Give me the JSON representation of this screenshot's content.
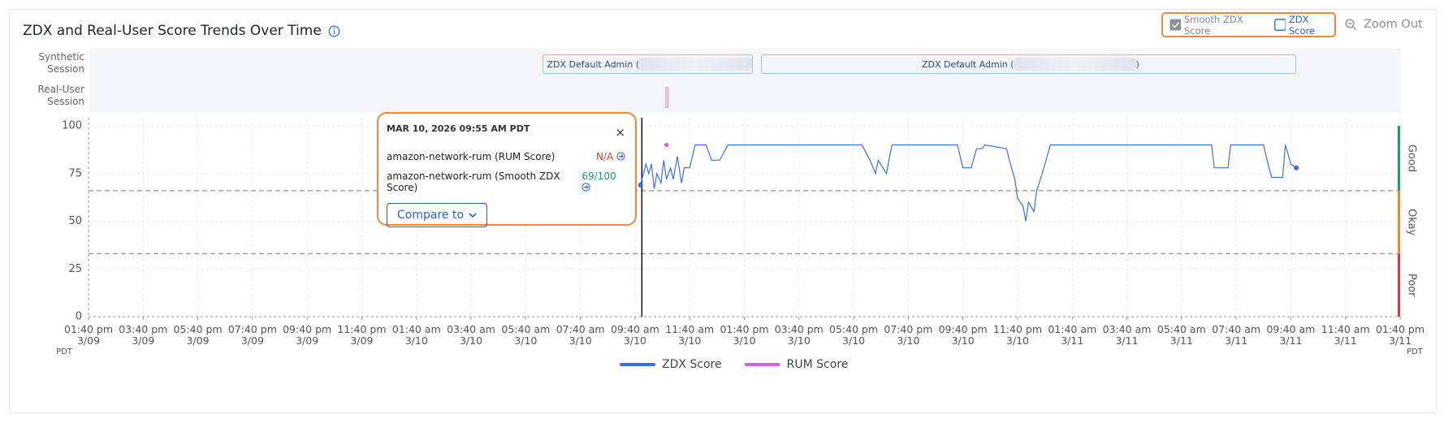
{
  "title": "ZDX and Real-User Score Trends Over Time",
  "controls": {
    "smooth": "Smooth ZDX Score",
    "zdx": "ZDX Score",
    "zoom": "Zoom Out"
  },
  "sessions": {
    "synthetic_label": "Synthetic Session",
    "real_user_label": "Real-User Session",
    "synthetic": [
      {
        "label": "ZDX Default Admin (",
        "start": 16.6,
        "end": 24.3
      },
      {
        "label": "ZDX Default Admin (",
        "suffix": ")",
        "start": 24.6,
        "end": 44.2
      }
    ],
    "real_user": [
      {
        "start": 21.1,
        "end": 21.25
      }
    ]
  },
  "tooltip": {
    "title": "MAR 10, 2026 09:55 AM PDT",
    "rows": [
      {
        "label": "amazon-network-rum (RUM Score)",
        "value": "N/A"
      },
      {
        "label": "amazon-network-rum (Smooth ZDX Score)",
        "value": "69/100"
      }
    ],
    "button": "Compare to"
  },
  "chart_data": {
    "type": "line",
    "x_unit_left": "PDT",
    "x_unit_right": "PDT",
    "cursor_x": 20.25,
    "xlim": [
      0,
      48
    ],
    "xticks": [
      {
        "value": 0,
        "label": "01:40 pm 3/09"
      },
      {
        "value": 2,
        "label": "03:40 pm 3/09"
      },
      {
        "value": 4,
        "label": "05:40 pm 3/09"
      },
      {
        "value": 6,
        "label": "07:40 pm 3/09"
      },
      {
        "value": 8,
        "label": "09:40 pm 3/09"
      },
      {
        "value": 10,
        "label": "11:40 pm 3/09"
      },
      {
        "value": 12,
        "label": "01:40 am 3/10"
      },
      {
        "value": 14,
        "label": "03:40 am 3/10"
      },
      {
        "value": 16,
        "label": "05:40 am 3/10"
      },
      {
        "value": 18,
        "label": "07:40 am 3/10"
      },
      {
        "value": 20,
        "label": "09:40 am 3/10"
      },
      {
        "value": 22,
        "label": "11:40 am 3/10"
      },
      {
        "value": 24,
        "label": "01:40 pm 3/10"
      },
      {
        "value": 26,
        "label": "03:40 pm 3/10"
      },
      {
        "value": 28,
        "label": "05:40 pm 3/10"
      },
      {
        "value": 30,
        "label": "07:40 pm 3/10"
      },
      {
        "value": 32,
        "label": "09:40 pm 3/10"
      },
      {
        "value": 34,
        "label": "11:40 pm 3/10"
      },
      {
        "value": 36,
        "label": "01:40 am 3/11"
      },
      {
        "value": 38,
        "label": "03:40 am 3/11"
      },
      {
        "value": 40,
        "label": "05:40 am 3/11"
      },
      {
        "value": 42,
        "label": "07:40 am 3/11"
      },
      {
        "value": 44,
        "label": "09:40 am 3/11"
      },
      {
        "value": 46,
        "label": "11:40 am 3/11"
      },
      {
        "value": 48,
        "label": "01:40 pm 3/11"
      }
    ],
    "ylim": [
      0,
      100
    ],
    "yticks": [
      0,
      25,
      50,
      75,
      100
    ],
    "grid": true,
    "bands": [
      {
        "label": "Good",
        "from": 66,
        "to": 100,
        "color": "#1a9e6e"
      },
      {
        "label": "Okay",
        "from": 33,
        "to": 66,
        "color": "#e98a2c"
      },
      {
        "label": "Poor",
        "from": 0,
        "to": 33,
        "color": "#d93a3a"
      }
    ],
    "series": [
      {
        "name": "ZDX Score",
        "color": "#3b6fe0",
        "x": [
          20.2,
          20.4,
          20.5,
          20.6,
          20.7,
          20.8,
          20.95,
          21.05,
          21.15,
          21.3,
          21.4,
          21.55,
          21.7,
          21.8,
          22.0,
          22.2,
          22.6,
          22.8,
          23.1,
          23.4,
          24.3,
          24.9,
          28.3,
          28.6,
          28.8,
          28.9,
          29.2,
          29.4,
          31.8,
          32.0,
          32.3,
          32.5,
          32.7,
          32.8,
          33.6,
          33.7,
          33.9,
          34.0,
          34.2,
          34.3,
          34.4,
          34.6,
          34.7,
          34.9,
          35.2,
          41.1,
          41.2,
          41.7,
          41.8,
          43.0,
          43.2,
          43.3,
          43.7,
          43.8,
          44.0,
          44.2
        ],
        "values": [
          69,
          80,
          75,
          80,
          67,
          75,
          70,
          82,
          72,
          78,
          72,
          84,
          70,
          78,
          78,
          90,
          90,
          82,
          82,
          90,
          90,
          90,
          90,
          82,
          75,
          82,
          75,
          90,
          90,
          78,
          78,
          88,
          88,
          90,
          88,
          82,
          72,
          62,
          58,
          50,
          60,
          55,
          66,
          75,
          90,
          90,
          78,
          78,
          90,
          90,
          78,
          73,
          73,
          90,
          80,
          78
        ]
      },
      {
        "name": "RUM Score",
        "color": "#c866e0",
        "x": [
          21.15
        ],
        "values": [
          90
        ]
      }
    ]
  }
}
